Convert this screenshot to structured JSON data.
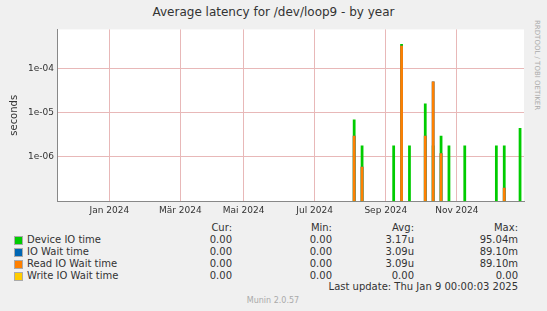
{
  "chart_data": {
    "type": "bar",
    "title": "Average latency for /dev/loop9 - by year",
    "y_label": "seconds",
    "log": "y",
    "grid": true,
    "categories": [
      null,
      null,
      null,
      null,
      null,
      null,
      "Jan 2024",
      null,
      null,
      null,
      null,
      null,
      null,
      null,
      null,
      "Mär 2024",
      null,
      null,
      null,
      null,
      null,
      null,
      null,
      "Mai 2024",
      null,
      null,
      null,
      null,
      null,
      null,
      null,
      null,
      "Jul 2024",
      null,
      null,
      null,
      null,
      null,
      null,
      null,
      null,
      "Sep 2024",
      null,
      null,
      null,
      null,
      null,
      null,
      null,
      null,
      "Nov 2024",
      null,
      null,
      null,
      null,
      null,
      null,
      null,
      null
    ],
    "ylim": [
      1e-07,
      0.00075
    ],
    "yticks": [
      {
        "value": 1e-06,
        "label": "1e-06"
      },
      {
        "value": 1e-05,
        "label": "1e-05"
      },
      {
        "value": 0.0001,
        "label": "1e-04"
      }
    ],
    "stats_columns": [
      "Cur:",
      "Min:",
      "Avg:",
      "Max:"
    ],
    "series": [
      {
        "name": "Device IO time",
        "color": "#00cc00",
        "stats": [
          "0.00",
          "0.00",
          "3.17u",
          "95.04m"
        ],
        "values": [
          null,
          null,
          null,
          null,
          null,
          null,
          null,
          null,
          null,
          null,
          null,
          null,
          null,
          null,
          null,
          null,
          null,
          null,
          null,
          null,
          null,
          null,
          null,
          null,
          null,
          null,
          null,
          null,
          null,
          null,
          null,
          null,
          null,
          null,
          null,
          null,
          null,
          7e-06,
          1.8e-06,
          null,
          null,
          null,
          1.8e-06,
          0.00035,
          1.8e-06,
          null,
          1.6e-05,
          1.8e-06,
          3e-06,
          1.8e-06,
          null,
          1.8e-06,
          null,
          null,
          null,
          1.8e-06,
          1.8e-06,
          null,
          4.5e-06
        ]
      },
      {
        "name": "IO Wait time",
        "color": "#0066b3",
        "stats": [
          "0.00",
          "0.00",
          "3.09u",
          "89.10m"
        ],
        "values": [
          null,
          null,
          null,
          null,
          null,
          null,
          null,
          null,
          null,
          null,
          null,
          null,
          null,
          null,
          null,
          null,
          null,
          null,
          null,
          null,
          null,
          null,
          null,
          null,
          null,
          null,
          null,
          null,
          null,
          null,
          null,
          null,
          null,
          null,
          null,
          null,
          null,
          3e-06,
          6e-07,
          null,
          null,
          null,
          null,
          0.00032,
          null,
          null,
          3e-06,
          5e-05,
          1.2e-06,
          null,
          null,
          null,
          null,
          null,
          null,
          null,
          2e-07,
          null,
          null
        ]
      },
      {
        "name": "Read IO Wait time",
        "color": "#ff8000",
        "stats": [
          "0.00",
          "0.00",
          "3.09u",
          "89.10m"
        ],
        "values": [
          null,
          null,
          null,
          null,
          null,
          null,
          null,
          null,
          null,
          null,
          null,
          null,
          null,
          null,
          null,
          null,
          null,
          null,
          null,
          null,
          null,
          null,
          null,
          null,
          null,
          null,
          null,
          null,
          null,
          null,
          null,
          null,
          null,
          null,
          null,
          null,
          null,
          3e-06,
          6e-07,
          null,
          null,
          null,
          null,
          0.00032,
          null,
          null,
          3e-06,
          5e-05,
          1.2e-06,
          null,
          null,
          null,
          null,
          null,
          null,
          null,
          2e-07,
          null,
          null
        ]
      },
      {
        "name": "Write IO Wait time",
        "color": "#ffcc00",
        "stats": [
          "0.00",
          "0.00",
          "0.00",
          "0.00"
        ],
        "values": [
          null,
          null,
          null,
          null,
          null,
          null,
          null,
          null,
          null,
          null,
          null,
          null,
          null,
          null,
          null,
          null,
          null,
          null,
          null,
          null,
          null,
          null,
          null,
          null,
          null,
          null,
          null,
          null,
          null,
          null,
          null,
          null,
          null,
          null,
          null,
          null,
          null,
          null,
          null,
          null,
          null,
          null,
          null,
          null,
          null,
          null,
          null,
          null,
          null,
          null,
          null,
          null,
          null,
          null,
          null,
          null,
          null,
          null,
          null
        ]
      }
    ],
    "last_update": "Last update: Thu Jan  9 00:00:03 2025",
    "footer": "Munin 2.0.57",
    "side_text": "RRDTOOL / TOBI OETIKER"
  }
}
